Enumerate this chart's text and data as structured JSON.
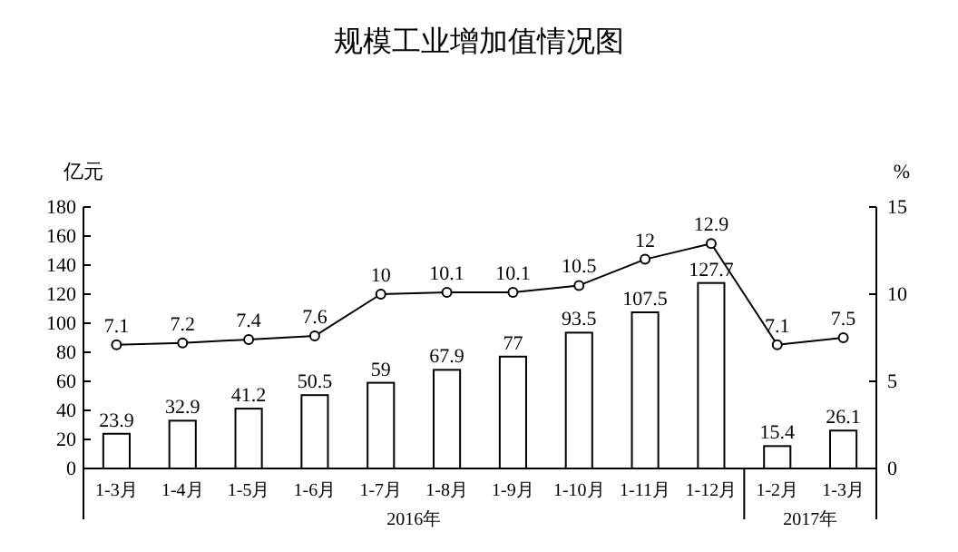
{
  "chart_data": {
    "type": "bar",
    "title": "规模工业增加值情况图",
    "ylabel": "亿元",
    "y2label": "%",
    "categories": [
      "1-3月",
      "1-4月",
      "1-5月",
      "1-6月",
      "1-7月",
      "1-8月",
      "1-9月",
      "1-10月",
      "1-11月",
      "1-12月",
      "1-2月",
      "1-3月"
    ],
    "series": [
      {
        "color": "#ffffff",
        "values": [
          23.9,
          32.9,
          41.2,
          50.5,
          59,
          67.9,
          77,
          93.5,
          107.5,
          127.7,
          15.4,
          26.1
        ]
      },
      {
        "type": "line",
        "axis": "y2",
        "color": "#000000",
        "marker": "circle",
        "values": [
          7.1,
          7.2,
          7.4,
          7.6,
          10,
          10.1,
          10.1,
          10.5,
          12,
          12.9,
          7.1,
          7.5
        ]
      }
    ],
    "ylim": [
      0,
      180
    ],
    "yticks": [
      0,
      20,
      40,
      60,
      80,
      100,
      120,
      140,
      160,
      180
    ],
    "y2lim": [
      0,
      15
    ],
    "y2ticks": [
      0,
      5,
      10,
      15
    ],
    "data_labels": true,
    "grid": false,
    "annotations": [
      "2016年",
      "2017年"
    ]
  }
}
